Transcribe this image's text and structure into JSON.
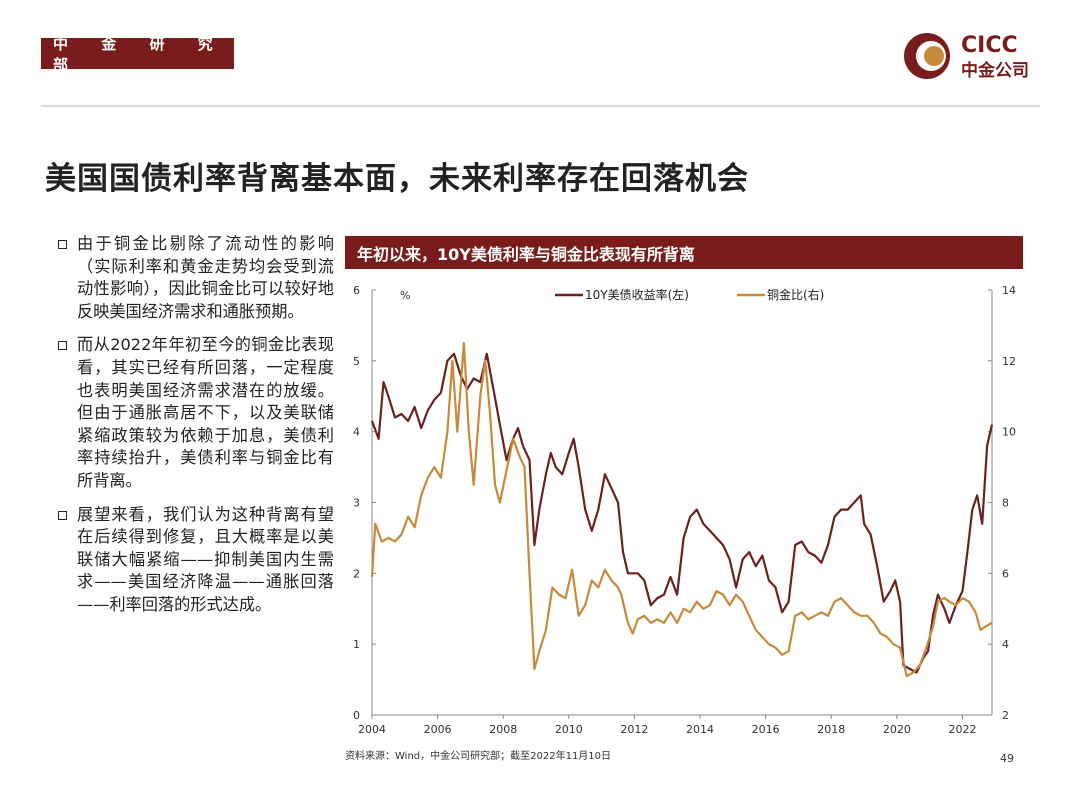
{
  "header": {
    "department": "中 金 研 究 部",
    "logo_en": "CICC",
    "logo_cn": "中金公司",
    "brand_color": "#7b1c1c"
  },
  "title": "美国国债利率背离基本面，未来利率存在回落机会",
  "bullets": [
    "由于铜金比剔除了流动性的影响（实际利率和黄金走势均会受到流动性影响），因此铜金比可以较好地反映美国经济需求和通胀预期。",
    "而从2022年年初至今的铜金比表现看，其实已经有所回落，一定程度也表明美国经济需求潜在的放缓。但由于通胀高居不下，以及美联储紧缩政策较为依赖于加息，美债利率持续抬升，美债利率与铜金比有所背离。",
    "展望来看，我们认为这种背离有望在后续得到修复，且大概率是以美联储大幅紧缩——抑制美国内生需求——美国经济降温——通胀回落——利率回落的形式达成。"
  ],
  "chart_title": "年初以来，10Y美债利率与铜金比表现有所背离",
  "source": "资料来源：Wind，中金公司研究部；截至2022年11月10日",
  "page_number": "49",
  "chart_data": {
    "type": "line",
    "unit_left": "%",
    "x_ticks": [
      "2004",
      "2006",
      "2008",
      "2010",
      "2012",
      "2014",
      "2016",
      "2018",
      "2020",
      "2022"
    ],
    "x_range": [
      2004,
      2022.9
    ],
    "y_left": {
      "ticks": [
        "0",
        "1",
        "2",
        "3",
        "4",
        "5",
        "6"
      ],
      "range": [
        0,
        6
      ]
    },
    "y_right": {
      "ticks": [
        "2",
        "4",
        "6",
        "8",
        "10",
        "12",
        "14"
      ],
      "range": [
        2,
        14
      ]
    },
    "grid": false,
    "legend_position": "top-center",
    "series": [
      {
        "name": "10Y美债收益率(左)",
        "axis": "left",
        "color": "#6e1f1f",
        "points": [
          [
            2004.0,
            4.15
          ],
          [
            2004.2,
            3.9
          ],
          [
            2004.35,
            4.7
          ],
          [
            2004.5,
            4.5
          ],
          [
            2004.7,
            4.2
          ],
          [
            2004.9,
            4.25
          ],
          [
            2005.1,
            4.15
          ],
          [
            2005.3,
            4.35
          ],
          [
            2005.5,
            4.05
          ],
          [
            2005.7,
            4.3
          ],
          [
            2005.9,
            4.45
          ],
          [
            2006.1,
            4.55
          ],
          [
            2006.3,
            5.0
          ],
          [
            2006.5,
            5.1
          ],
          [
            2006.7,
            4.8
          ],
          [
            2006.9,
            4.6
          ],
          [
            2007.1,
            4.75
          ],
          [
            2007.3,
            4.7
          ],
          [
            2007.5,
            5.1
          ],
          [
            2007.7,
            4.6
          ],
          [
            2007.9,
            4.1
          ],
          [
            2008.1,
            3.6
          ],
          [
            2008.3,
            3.9
          ],
          [
            2008.45,
            4.05
          ],
          [
            2008.6,
            3.8
          ],
          [
            2008.8,
            3.6
          ],
          [
            2008.95,
            2.4
          ],
          [
            2009.1,
            2.9
          ],
          [
            2009.3,
            3.4
          ],
          [
            2009.45,
            3.7
          ],
          [
            2009.6,
            3.5
          ],
          [
            2009.8,
            3.4
          ],
          [
            2010.0,
            3.7
          ],
          [
            2010.15,
            3.9
          ],
          [
            2010.3,
            3.5
          ],
          [
            2010.5,
            2.9
          ],
          [
            2010.7,
            2.6
          ],
          [
            2010.9,
            2.9
          ],
          [
            2011.1,
            3.4
          ],
          [
            2011.3,
            3.2
          ],
          [
            2011.5,
            3.0
          ],
          [
            2011.65,
            2.3
          ],
          [
            2011.8,
            2.0
          ],
          [
            2011.95,
            2.0
          ],
          [
            2012.1,
            2.0
          ],
          [
            2012.3,
            1.9
          ],
          [
            2012.5,
            1.55
          ],
          [
            2012.7,
            1.65
          ],
          [
            2012.9,
            1.7
          ],
          [
            2013.1,
            1.95
          ],
          [
            2013.3,
            1.7
          ],
          [
            2013.5,
            2.5
          ],
          [
            2013.7,
            2.8
          ],
          [
            2013.9,
            2.9
          ],
          [
            2014.1,
            2.7
          ],
          [
            2014.3,
            2.6
          ],
          [
            2014.5,
            2.5
          ],
          [
            2014.7,
            2.4
          ],
          [
            2014.9,
            2.2
          ],
          [
            2015.1,
            1.8
          ],
          [
            2015.3,
            2.2
          ],
          [
            2015.5,
            2.3
          ],
          [
            2015.7,
            2.1
          ],
          [
            2015.9,
            2.25
          ],
          [
            2016.1,
            1.9
          ],
          [
            2016.3,
            1.8
          ],
          [
            2016.5,
            1.45
          ],
          [
            2016.7,
            1.6
          ],
          [
            2016.9,
            2.4
          ],
          [
            2017.1,
            2.45
          ],
          [
            2017.3,
            2.3
          ],
          [
            2017.5,
            2.25
          ],
          [
            2017.7,
            2.15
          ],
          [
            2017.9,
            2.4
          ],
          [
            2018.1,
            2.8
          ],
          [
            2018.3,
            2.9
          ],
          [
            2018.5,
            2.9
          ],
          [
            2018.7,
            3.0
          ],
          [
            2018.9,
            3.1
          ],
          [
            2019.0,
            2.7
          ],
          [
            2019.2,
            2.55
          ],
          [
            2019.4,
            2.1
          ],
          [
            2019.6,
            1.6
          ],
          [
            2019.8,
            1.75
          ],
          [
            2019.95,
            1.9
          ],
          [
            2020.1,
            1.6
          ],
          [
            2020.2,
            0.7
          ],
          [
            2020.4,
            0.65
          ],
          [
            2020.6,
            0.6
          ],
          [
            2020.8,
            0.8
          ],
          [
            2020.95,
            0.9
          ],
          [
            2021.1,
            1.4
          ],
          [
            2021.25,
            1.7
          ],
          [
            2021.45,
            1.5
          ],
          [
            2021.6,
            1.3
          ],
          [
            2021.8,
            1.55
          ],
          [
            2022.0,
            1.75
          ],
          [
            2022.15,
            2.3
          ],
          [
            2022.3,
            2.9
          ],
          [
            2022.45,
            3.1
          ],
          [
            2022.6,
            2.7
          ],
          [
            2022.75,
            3.8
          ],
          [
            2022.9,
            4.1
          ]
        ]
      },
      {
        "name": "铜金比(右)",
        "axis": "right",
        "color": "#c8893a",
        "points": [
          [
            2004.0,
            5.9
          ],
          [
            2004.1,
            7.4
          ],
          [
            2004.3,
            6.9
          ],
          [
            2004.5,
            7.0
          ],
          [
            2004.7,
            6.9
          ],
          [
            2004.9,
            7.1
          ],
          [
            2005.1,
            7.6
          ],
          [
            2005.3,
            7.3
          ],
          [
            2005.5,
            8.2
          ],
          [
            2005.7,
            8.7
          ],
          [
            2005.9,
            9.0
          ],
          [
            2006.1,
            8.7
          ],
          [
            2006.3,
            10.0
          ],
          [
            2006.45,
            12.0
          ],
          [
            2006.6,
            10.0
          ],
          [
            2006.8,
            12.5
          ],
          [
            2006.95,
            10.0
          ],
          [
            2007.1,
            8.5
          ],
          [
            2007.3,
            11.0
          ],
          [
            2007.45,
            12.0
          ],
          [
            2007.6,
            10.5
          ],
          [
            2007.75,
            8.5
          ],
          [
            2007.9,
            8.0
          ],
          [
            2008.1,
            8.9
          ],
          [
            2008.3,
            9.8
          ],
          [
            2008.5,
            9.3
          ],
          [
            2008.65,
            9.0
          ],
          [
            2008.8,
            6.0
          ],
          [
            2008.95,
            3.3
          ],
          [
            2009.1,
            3.8
          ],
          [
            2009.3,
            4.4
          ],
          [
            2009.5,
            5.6
          ],
          [
            2009.7,
            5.4
          ],
          [
            2009.9,
            5.3
          ],
          [
            2010.1,
            6.1
          ],
          [
            2010.3,
            4.8
          ],
          [
            2010.5,
            5.1
          ],
          [
            2010.7,
            5.8
          ],
          [
            2010.9,
            5.6
          ],
          [
            2011.1,
            6.1
          ],
          [
            2011.3,
            5.8
          ],
          [
            2011.5,
            5.6
          ],
          [
            2011.6,
            5.4
          ],
          [
            2011.8,
            4.6
          ],
          [
            2011.95,
            4.3
          ],
          [
            2012.1,
            4.7
          ],
          [
            2012.3,
            4.8
          ],
          [
            2012.5,
            4.6
          ],
          [
            2012.7,
            4.7
          ],
          [
            2012.9,
            4.6
          ],
          [
            2013.1,
            4.9
          ],
          [
            2013.3,
            4.6
          ],
          [
            2013.5,
            5.0
          ],
          [
            2013.7,
            4.9
          ],
          [
            2013.9,
            5.2
          ],
          [
            2014.1,
            5.0
          ],
          [
            2014.3,
            5.1
          ],
          [
            2014.5,
            5.5
          ],
          [
            2014.7,
            5.4
          ],
          [
            2014.9,
            5.1
          ],
          [
            2015.1,
            5.4
          ],
          [
            2015.3,
            5.2
          ],
          [
            2015.5,
            4.8
          ],
          [
            2015.7,
            4.4
          ],
          [
            2015.9,
            4.2
          ],
          [
            2016.1,
            4.0
          ],
          [
            2016.3,
            3.9
          ],
          [
            2016.5,
            3.7
          ],
          [
            2016.7,
            3.8
          ],
          [
            2016.9,
            4.8
          ],
          [
            2017.1,
            4.9
          ],
          [
            2017.3,
            4.7
          ],
          [
            2017.5,
            4.8
          ],
          [
            2017.7,
            4.9
          ],
          [
            2017.9,
            4.8
          ],
          [
            2018.1,
            5.2
          ],
          [
            2018.3,
            5.3
          ],
          [
            2018.5,
            5.1
          ],
          [
            2018.7,
            4.9
          ],
          [
            2018.9,
            4.8
          ],
          [
            2019.1,
            4.8
          ],
          [
            2019.3,
            4.6
          ],
          [
            2019.5,
            4.3
          ],
          [
            2019.7,
            4.2
          ],
          [
            2019.9,
            4.0
          ],
          [
            2020.1,
            3.9
          ],
          [
            2020.3,
            3.1
          ],
          [
            2020.5,
            3.2
          ],
          [
            2020.7,
            3.4
          ],
          [
            2020.9,
            3.9
          ],
          [
            2021.1,
            4.5
          ],
          [
            2021.25,
            5.2
          ],
          [
            2021.45,
            5.3
          ],
          [
            2021.6,
            5.2
          ],
          [
            2021.8,
            5.1
          ],
          [
            2022.0,
            5.3
          ],
          [
            2022.2,
            5.2
          ],
          [
            2022.4,
            4.9
          ],
          [
            2022.55,
            4.4
          ],
          [
            2022.7,
            4.5
          ],
          [
            2022.9,
            4.6
          ]
        ]
      }
    ]
  }
}
